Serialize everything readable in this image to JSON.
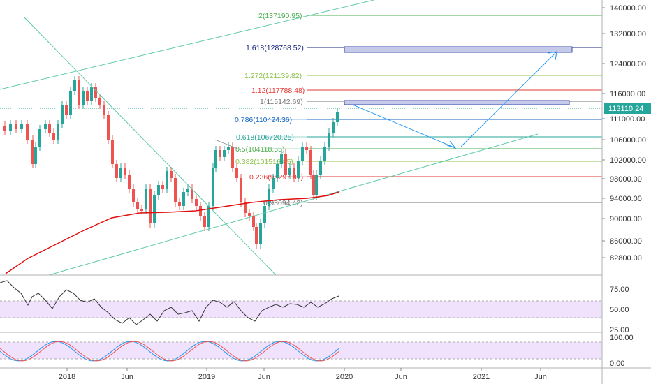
{
  "chart_data": {
    "type": "candlestick",
    "price_axis": {
      "ticks": [
        "140000.00",
        "132000.00",
        "124000.00",
        "116000.00",
        "111000.00",
        "106000.00",
        "102000.00",
        "98000.00",
        "94000.00",
        "90000.00",
        "86000.00",
        "82800.00"
      ],
      "last_price": "113110.24",
      "scale": "log"
    },
    "time_axis": {
      "ticks": [
        "2018",
        "Jun",
        "2019",
        "Jun",
        "2020",
        "Jun",
        "2021",
        "Jun"
      ]
    },
    "fib_levels": [
      {
        "label": "2(137190.95)",
        "price": 137190.95,
        "color": "#4caf50"
      },
      {
        "label": "1.618(128768.52)",
        "price": 128768.52,
        "color": "#1a237e"
      },
      {
        "label": "1.272(121139.82)",
        "price": 121139.82,
        "color": "#8bc34a"
      },
      {
        "label": "1.12(117788.48)",
        "price": 117788.48,
        "color": "#e53935"
      },
      {
        "label": "1(115142.69)",
        "price": 115142.69,
        "color": "#757575"
      },
      {
        "label": "0.786(110424.36)",
        "price": 110424.36,
        "color": "#1565c0"
      },
      {
        "label": "0.618(106720.25)",
        "price": 106720.25,
        "color": "#26a69a"
      },
      {
        "label": "0.5(104118.55)",
        "price": 104118.55,
        "color": "#4caf50"
      },
      {
        "label": "0.382(101516.85)",
        "price": 101516.85,
        "color": "#8bc34a"
      },
      {
        "label": "0.236(98297.81)",
        "price": 98297.81,
        "color": "#e53935"
      },
      {
        "label": "0(93094.42)",
        "price": 93094.42,
        "color": "#757575"
      }
    ],
    "rsi": {
      "ticks": [
        "75.00",
        "50.00",
        "25.00"
      ]
    },
    "stoch_rsi": {
      "ticks": [
        "100.00",
        "0.00"
      ]
    },
    "colors": {
      "up": "#26a69a",
      "down": "#ef5350",
      "ma": "#e01010",
      "trend": "#5fc9a8",
      "box": "#c5cae9",
      "arrow": "#2196f3",
      "price_tag": "#26a69a"
    }
  }
}
